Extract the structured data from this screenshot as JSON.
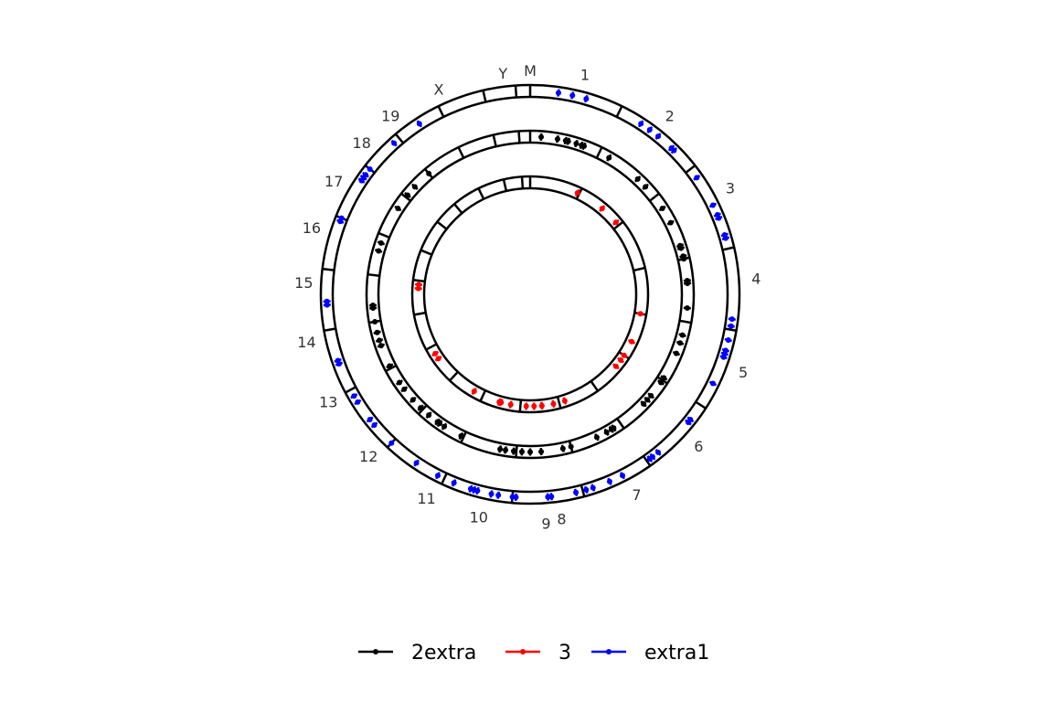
{
  "chart_data": {
    "type": "circular-genome-track",
    "chromosomes": [
      "M",
      "1",
      "2",
      "3",
      "4",
      "5",
      "6",
      "7",
      "8",
      "9",
      "10",
      "11",
      "12",
      "13",
      "14",
      "15",
      "16",
      "17",
      "18",
      "19",
      "X",
      "Y"
    ],
    "track_order_outer_to_inner": [
      "extra1",
      "2extra",
      "3"
    ],
    "legend": {
      "placement": "bottom",
      "entries": [
        {
          "name": "2extra",
          "color": "#000000"
        },
        {
          "name": "3",
          "color": "#ff0000"
        },
        {
          "name": "extra1",
          "color": "#0000ff"
        }
      ]
    },
    "series": [
      {
        "name": "extra1",
        "color": "#0000ff",
        "positions_deg": [
          8,
          12,
          16,
          33,
          36,
          39,
          44,
          45,
          55,
          64,
          67,
          68,
          73,
          74,
          97,
          99,
          103,
          106,
          107,
          108,
          116,
          128,
          129,
          141,
          143,
          144,
          153,
          157,
          162,
          164,
          167,
          174,
          175,
          184,
          185,
          189,
          191,
          195,
          196,
          197,
          202,
          207,
          214,
          223,
          230,
          232,
          238,
          240,
          250,
          251,
          267,
          268,
          291,
          292,
          304,
          305,
          306,
          308,
          318,
          327
        ]
      },
      {
        "name": "2extra",
        "color": "#000000",
        "positions_deg": [
          4,
          10,
          13,
          14,
          17,
          19,
          20,
          30,
          43,
          47,
          57,
          63,
          72,
          73,
          76,
          77,
          85,
          86,
          95,
          105,
          108,
          112,
          122,
          124,
          130,
          132,
          134,
          148,
          149,
          151,
          155,
          165,
          168,
          176,
          180,
          183,
          186,
          189,
          191,
          206,
          213,
          215,
          216,
          220,
          224,
          228,
          233,
          236,
          243,
          251,
          253,
          256,
          260,
          265,
          266,
          286,
          289,
          303,
          309,
          313,
          320
        ]
      },
      {
        "name": "3",
        "color": "#ff0000",
        "positions_deg": [
          25,
          40,
          50,
          100,
          115,
          123,
          126,
          130,
          162,
          168,
          174,
          174,
          178,
          182,
          190,
          195,
          196,
          210,
          235,
          238,
          273,
          275
        ]
      }
    ]
  }
}
